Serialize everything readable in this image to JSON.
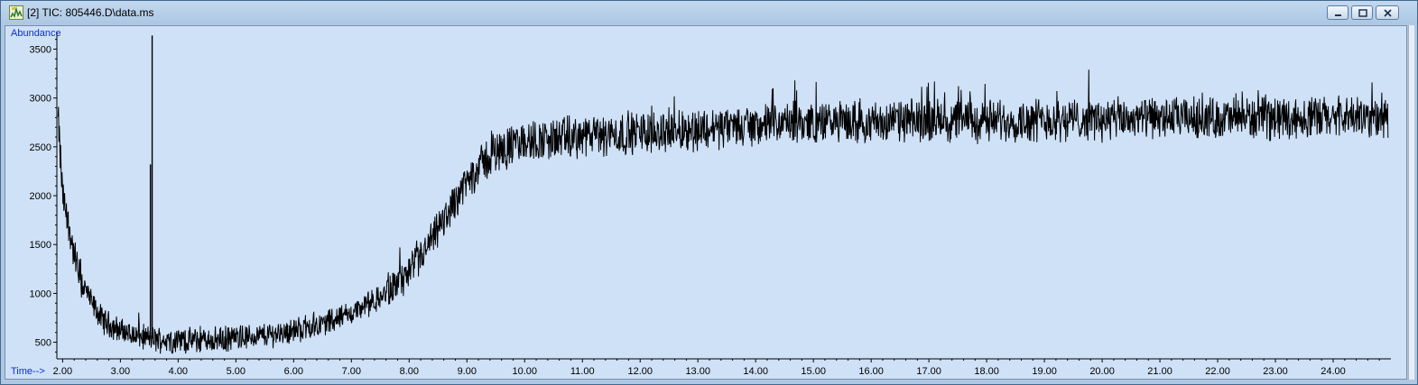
{
  "window": {
    "title": "[2] TIC: 805446.D\\data.ms",
    "icon": "chromatogram-app-icon",
    "buttons": [
      "minimize",
      "maximize",
      "close"
    ]
  },
  "chart_data": {
    "type": "line",
    "ylabel": "Abundance",
    "xlabel": "Time-->",
    "xlim": [
      1.9,
      25.0
    ],
    "ylim": [
      330,
      3680
    ],
    "x_ticks": [
      2,
      3,
      4,
      5,
      6,
      7,
      8,
      9,
      10,
      11,
      12,
      13,
      14,
      15,
      16,
      17,
      18,
      19,
      20,
      21,
      22,
      23,
      24
    ],
    "x_tick_labels": [
      "2.00",
      "3.00",
      "4.00",
      "5.00",
      "6.00",
      "7.00",
      "8.00",
      "9.00",
      "10.00",
      "11.00",
      "12.00",
      "13.00",
      "14.00",
      "15.00",
      "16.00",
      "17.00",
      "18.00",
      "19.00",
      "20.00",
      "21.00",
      "22.00",
      "23.00",
      "24.00"
    ],
    "y_ticks": [
      500,
      1000,
      1500,
      2000,
      2500,
      3000,
      3500
    ],
    "y_tick_labels": [
      "500",
      "1000",
      "1500",
      "2000",
      "2500",
      "3000",
      "3500"
    ],
    "series": [
      {
        "color": "#000000",
        "baseline": {
          "x": [
            1.9,
            1.95,
            2.0,
            2.1,
            2.2,
            2.3,
            2.5,
            2.7,
            3.0,
            3.3,
            3.6,
            4.0,
            4.5,
            5.0,
            5.5,
            6.0,
            6.5,
            7.0,
            7.5,
            8.0,
            8.3,
            8.6,
            8.9,
            9.2,
            9.5,
            10.0,
            10.5,
            11.0,
            12.0,
            13.0,
            14.0,
            15.0,
            16.0,
            17.0,
            18.0,
            19.0,
            20.0,
            21.0,
            22.0,
            23.0,
            24.0,
            25.0
          ],
          "y": [
            2950,
            2500,
            2000,
            1700,
            1400,
            1150,
            900,
            720,
            620,
            560,
            530,
            520,
            520,
            540,
            570,
            620,
            690,
            800,
            950,
            1200,
            1450,
            1750,
            2050,
            2300,
            2450,
            2550,
            2580,
            2600,
            2650,
            2680,
            2720,
            2750,
            2750,
            2770,
            2770,
            2780,
            2780,
            2790,
            2790,
            2800,
            2800,
            2800
          ]
        },
        "noise_amplitude": 190,
        "spikes": [
          {
            "x": 3.55,
            "y": 3640
          },
          {
            "x": 3.52,
            "y": 2320
          }
        ]
      }
    ]
  }
}
